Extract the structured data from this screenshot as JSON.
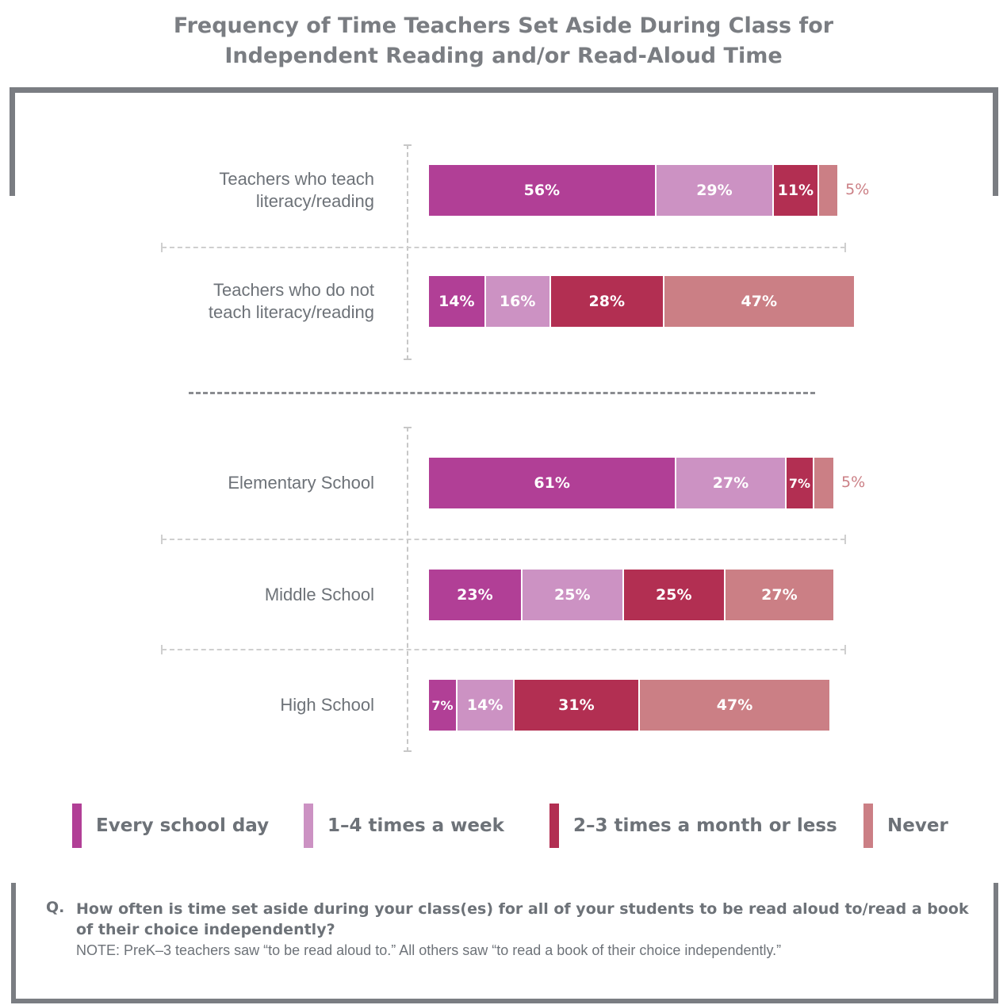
{
  "title_line1": "Frequency of Time Teachers Set Aside During Class for",
  "title_line2": "Independent Reading and/or Read-Aloud Time",
  "question_prefix": "Q.",
  "question": "How often is time set aside during your class(es) for all of your students to be read aloud to/read a book of their choice independently?",
  "note": "NOTE: PreK–3 teachers saw “to be read aloud to.” All others saw “to read a book of their choice independently.”",
  "chart_data": {
    "type": "bar",
    "orientation": "horizontal",
    "stacked": true,
    "title": "Frequency of Time Teachers Set Aside During Class for Independent Reading and/or Read-Aloud Time",
    "categories": [
      [
        "Teachers who teach",
        "literacy/reading"
      ],
      [
        "Teachers who do not",
        "teach literacy/reading"
      ],
      [
        "Elementary School"
      ],
      [
        "Middle School"
      ],
      [
        "High School"
      ]
    ],
    "series": [
      {
        "name": "Every school day",
        "color": "#b13f96",
        "values": [
          56,
          14,
          61,
          23,
          7
        ]
      },
      {
        "name": "1–4 times a week",
        "color": "#cc92c3",
        "values": [
          29,
          16,
          27,
          25,
          14
        ]
      },
      {
        "name": "2–3 times a month or less",
        "color": "#b22f52",
        "values": [
          11,
          28,
          7,
          25,
          31
        ]
      },
      {
        "name": "Never",
        "color": "#cb7f85",
        "values": [
          5,
          47,
          5,
          27,
          47
        ]
      }
    ],
    "value_suffix": "%",
    "legend_position": "bottom",
    "grid": false
  }
}
